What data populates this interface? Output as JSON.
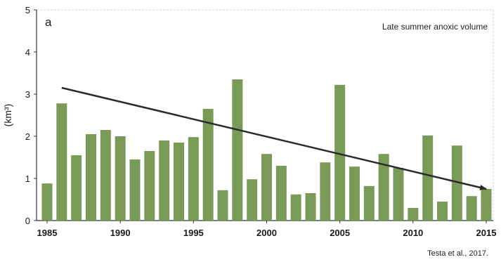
{
  "chart_data": {
    "type": "bar",
    "title": "Late summer anoxic volume",
    "panel_label": "a",
    "xlabel": "",
    "ylabel": "(km³)",
    "ylim": [
      0,
      5
    ],
    "yticks": [
      "0",
      "1",
      "2",
      "3",
      "4",
      "5"
    ],
    "xticks": [
      "1985",
      "1990",
      "1995",
      "2000",
      "2005",
      "2010",
      "2015"
    ],
    "categories": [
      1985,
      1986,
      1987,
      1988,
      1989,
      1990,
      1991,
      1992,
      1993,
      1994,
      1995,
      1996,
      1997,
      1998,
      1999,
      2000,
      2001,
      2002,
      2003,
      2004,
      2005,
      2006,
      2007,
      2008,
      2009,
      2010,
      2011,
      2012,
      2013,
      2014,
      2015
    ],
    "values": [
      0.88,
      2.78,
      1.55,
      2.05,
      2.15,
      2.0,
      1.45,
      1.65,
      1.9,
      1.85,
      1.98,
      2.65,
      0.72,
      3.35,
      0.98,
      1.58,
      1.3,
      0.62,
      0.65,
      1.38,
      3.22,
      1.28,
      0.82,
      1.58,
      1.25,
      0.3,
      2.02,
      0.45,
      1.78,
      0.58,
      0.75
    ],
    "trend_line": {
      "x": [
        1986,
        2015
      ],
      "y": [
        3.15,
        0.75
      ]
    },
    "grid": false,
    "legend": "none",
    "bar_color": "#7a9a57",
    "trend_color": "#2a2a2a",
    "source": "Testa et al., 2017."
  }
}
